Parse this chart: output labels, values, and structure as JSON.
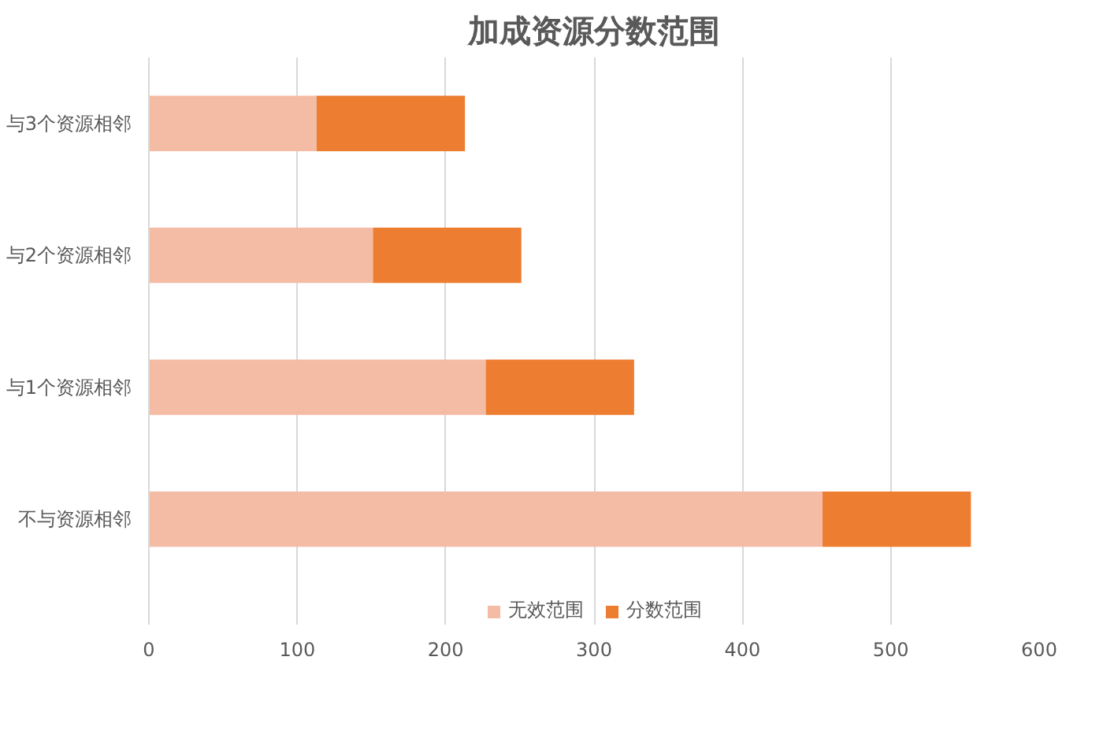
{
  "chart_data": {
    "type": "bar",
    "orientation": "horizontal",
    "stacked": true,
    "title": "加成资源分数范围",
    "categories": [
      "与3个资源相邻",
      "与2个资源相邻",
      "与1个资源相邻",
      "不与资源相邻"
    ],
    "series": [
      {
        "name": "无效范围",
        "color": "#f4bca5",
        "values": [
          113,
          151,
          227,
          454
        ]
      },
      {
        "name": "分数范围",
        "color": "#ed7d31",
        "values": [
          100,
          100,
          100,
          100
        ]
      }
    ],
    "xlim": [
      0,
      600
    ],
    "xticks": [
      0,
      100,
      200,
      300,
      400,
      500,
      600
    ],
    "grid": "x",
    "legend": "bottom"
  }
}
